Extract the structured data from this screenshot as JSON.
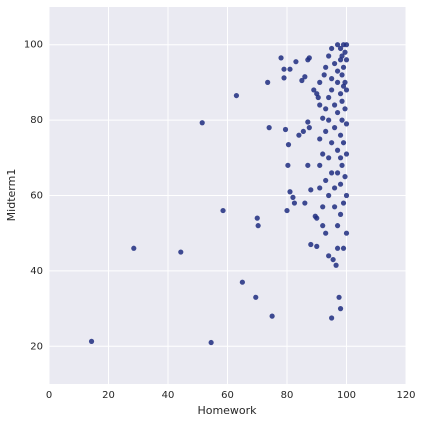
{
  "chart_data": {
    "type": "scatter",
    "xlabel": "Homework",
    "ylabel": "Midterm1",
    "color": "#1f2d80",
    "grid": true,
    "xlim": [
      0,
      120
    ],
    "xticks": [
      0,
      20,
      40,
      60,
      80,
      100,
      120
    ],
    "ylim": [
      10,
      110
    ],
    "yticks": [
      20,
      40,
      60,
      80,
      100
    ],
    "x": [
      14.3,
      28.5,
      44.3,
      51.5,
      54.5,
      58.5,
      63,
      65,
      69.5,
      70,
      70.3,
      73.5,
      74,
      75,
      78,
      79,
      79,
      79.5,
      80,
      80.3,
      80.5,
      81,
      81,
      82,
      82.5,
      83,
      84,
      85,
      85.5,
      86,
      86,
      87,
      87,
      87.5,
      87,
      87.5,
      88,
      88,
      89,
      89.5,
      90,
      90,
      90,
      90.5,
      91,
      91,
      91,
      91,
      91,
      92,
      92,
      92,
      92,
      92.5,
      93,
      93,
      93,
      93,
      93,
      94,
      94,
      94,
      94,
      94,
      94,
      95,
      95,
      95,
      95,
      95,
      95,
      95.5,
      96,
      96,
      96,
      96,
      96,
      96.5,
      97,
      97,
      97,
      97,
      97,
      97,
      97,
      97,
      97.5,
      98,
      98,
      98,
      98,
      98,
      98,
      98,
      98,
      98.5,
      98.5,
      98.5,
      98.5,
      98.5,
      99,
      99,
      99,
      99,
      99,
      99,
      99.5,
      99.5,
      99.5,
      99.5,
      100,
      100,
      100,
      100,
      100,
      100,
      100
    ],
    "y": [
      21.3,
      46,
      45,
      79.3,
      21,
      56,
      86.5,
      37,
      33,
      54,
      52,
      90,
      78,
      28,
      96.5,
      93.5,
      91.2,
      77.5,
      56,
      68,
      73.5,
      93.5,
      61,
      59.5,
      58,
      95.5,
      76,
      90.5,
      77,
      91.5,
      58,
      79.5,
      96,
      96.5,
      68,
      78,
      61.5,
      47,
      88,
      54.5,
      54,
      87,
      46.5,
      86,
      90,
      84,
      75,
      68,
      62,
      80.5,
      71,
      57,
      52,
      92,
      94,
      83,
      77,
      64,
      50,
      97,
      86,
      80,
      70,
      60,
      44,
      99,
      91,
      88,
      74,
      66,
      27.5,
      43,
      95,
      84,
      78,
      62,
      57,
      41.5,
      100,
      93,
      90,
      82,
      72,
      66,
      52,
      46,
      33,
      99,
      96,
      87,
      76,
      70,
      63,
      55,
      30,
      97,
      92,
      85,
      80,
      68,
      100,
      94,
      89,
      74,
      58,
      46,
      98,
      90,
      83,
      65,
      100,
      96,
      88,
      79,
      71,
      60,
      50
    ]
  }
}
